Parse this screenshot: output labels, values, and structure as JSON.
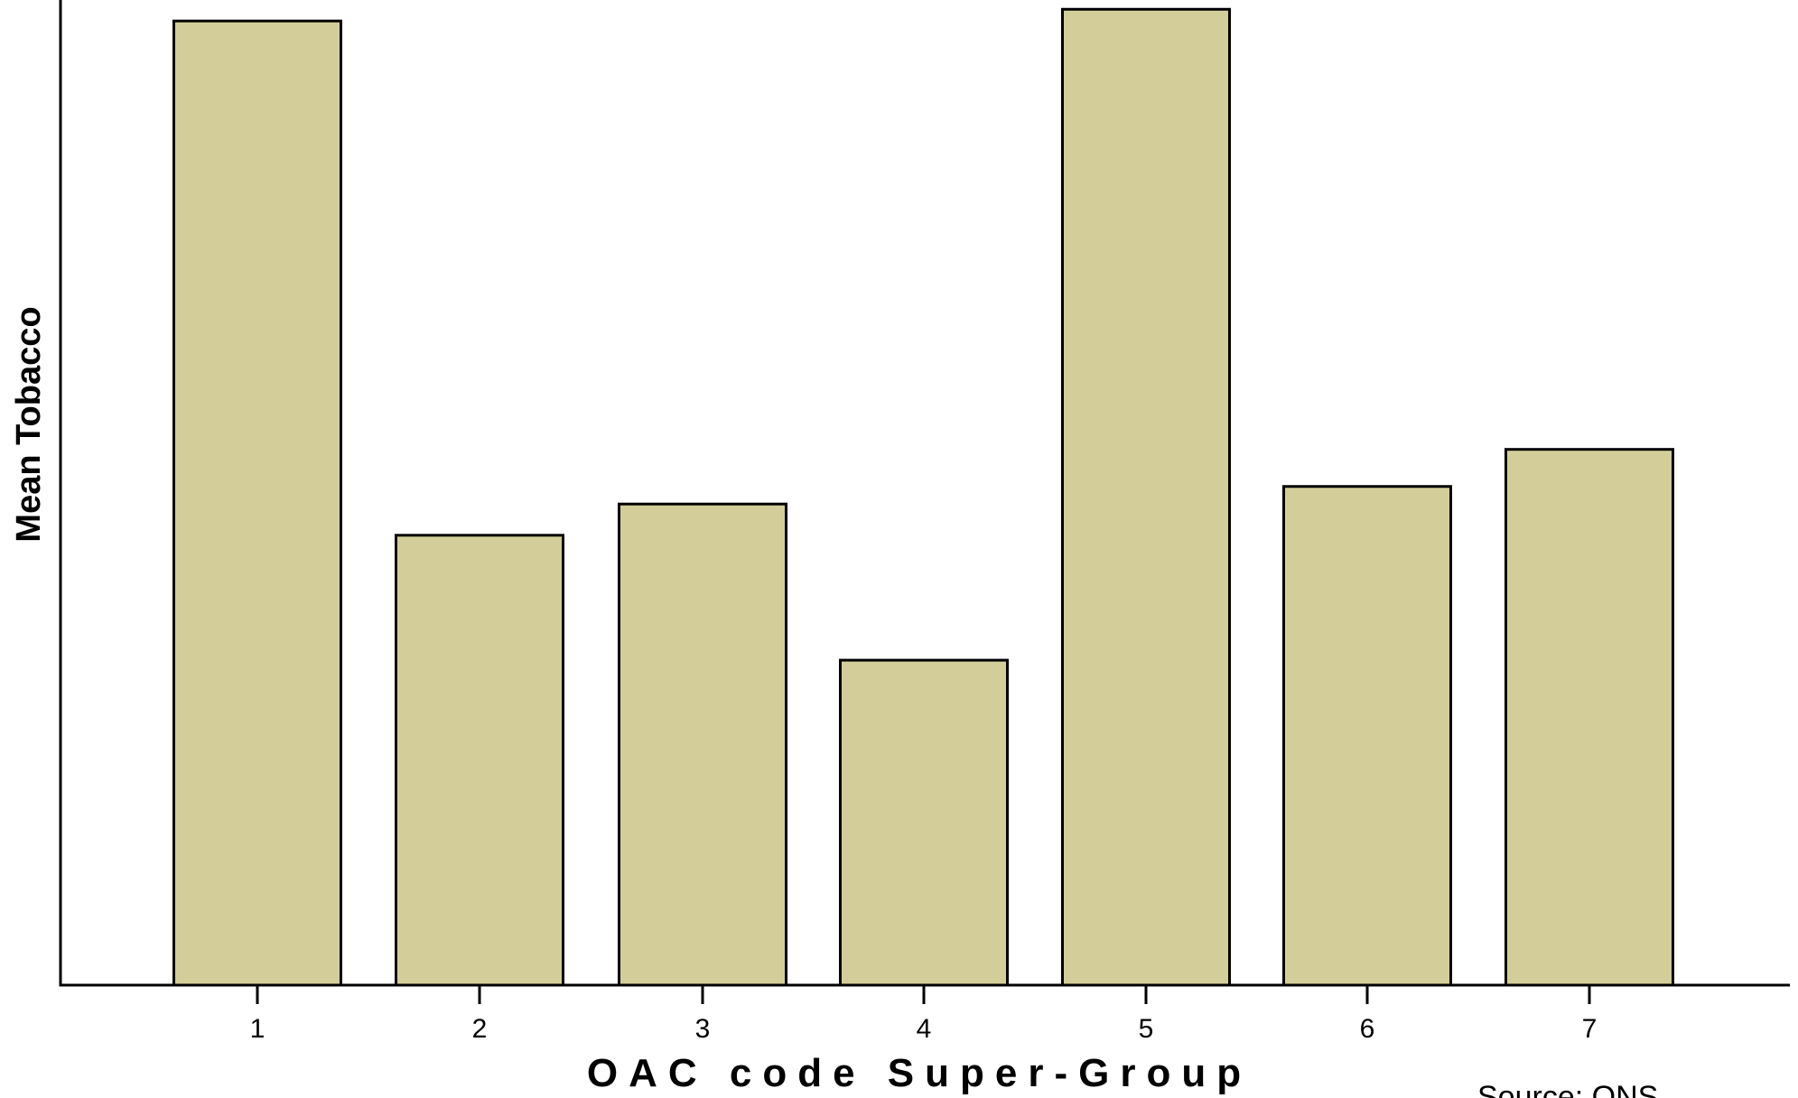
{
  "chart_data": {
    "type": "bar",
    "title": "",
    "xlabel": "OAC code Super-Group",
    "ylabel": "Mean Tobacco",
    "categories": [
      "1",
      "2",
      "3",
      "4",
      "5",
      "6",
      "7"
    ],
    "values": [
      98.8,
      46.1,
      49.3,
      33.3,
      100,
      51.1,
      54.9
    ],
    "ylim": [
      0,
      100.95
    ],
    "grid": false,
    "bar_color": "#d3ce99",
    "bar_edge_color": "#000000"
  },
  "source": "Source: ONS"
}
